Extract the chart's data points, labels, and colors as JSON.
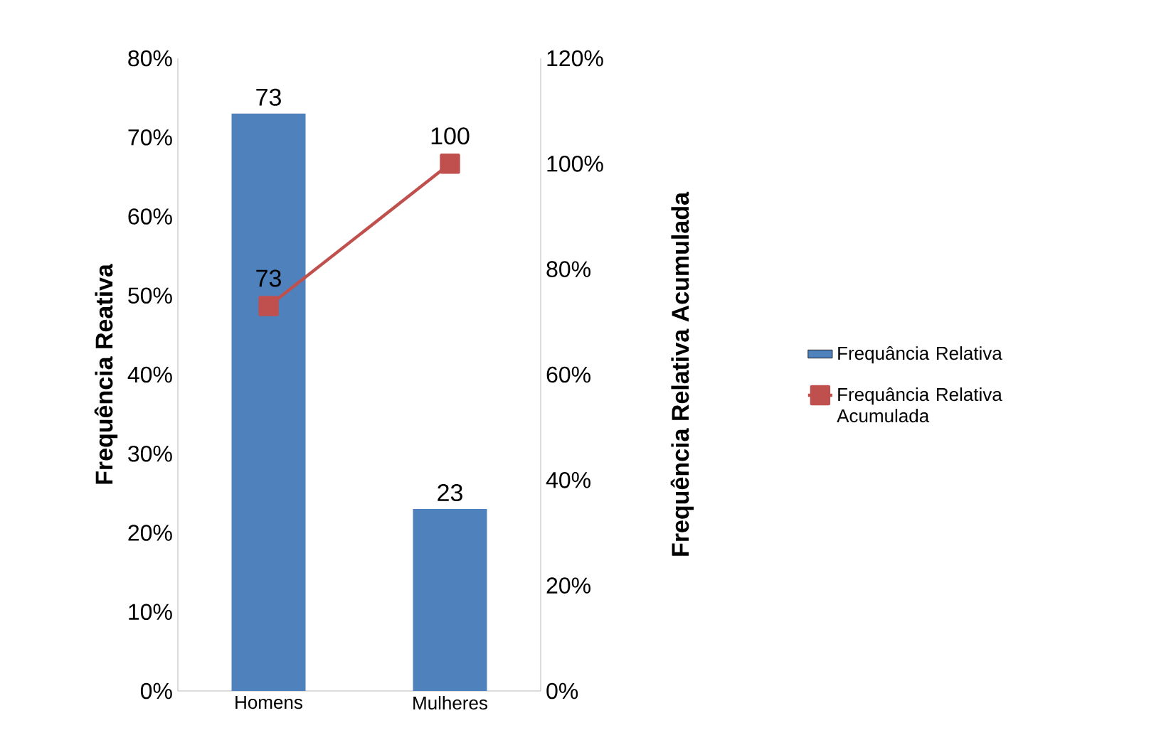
{
  "chart_data": {
    "type": "bar",
    "ylabel": "Frequência Reativa",
    "y2label": "Frequência Relativa Acumulada",
    "categories": [
      "Homens",
      "Mulheres"
    ],
    "series": [
      {
        "name": "Frequância Relativa",
        "color": "#4f81bd",
        "values": [
          73,
          23
        ],
        "value_labels": [
          "73",
          "23"
        ]
      },
      {
        "name": "Frequância Relativa Acumulada",
        "type": "line",
        "axis": "y2",
        "color": "#c0504d",
        "marker": "square",
        "values": [
          73,
          100
        ],
        "value_labels": [
          "73",
          "100"
        ]
      }
    ],
    "ylim": [
      0,
      80
    ],
    "yticks": [
      {
        "value": 0,
        "label": "0%"
      },
      {
        "value": 10,
        "label": "10%"
      },
      {
        "value": 20,
        "label": "20%"
      },
      {
        "value": 30,
        "label": "30%"
      },
      {
        "value": 40,
        "label": "40%"
      },
      {
        "value": 50,
        "label": "50%"
      },
      {
        "value": 60,
        "label": "60%"
      },
      {
        "value": 70,
        "label": "70%"
      },
      {
        "value": 80,
        "label": "80%"
      }
    ],
    "y2lim": [
      0,
      120
    ],
    "y2ticks": [
      {
        "value": 0,
        "label": "0%"
      },
      {
        "value": 20,
        "label": "20%"
      },
      {
        "value": 40,
        "label": "40%"
      },
      {
        "value": 60,
        "label": "60%"
      },
      {
        "value": 80,
        "label": "80%"
      },
      {
        "value": 100,
        "label": "100%"
      },
      {
        "value": 120,
        "label": "120%"
      }
    ],
    "grid": false,
    "legend": "right"
  }
}
